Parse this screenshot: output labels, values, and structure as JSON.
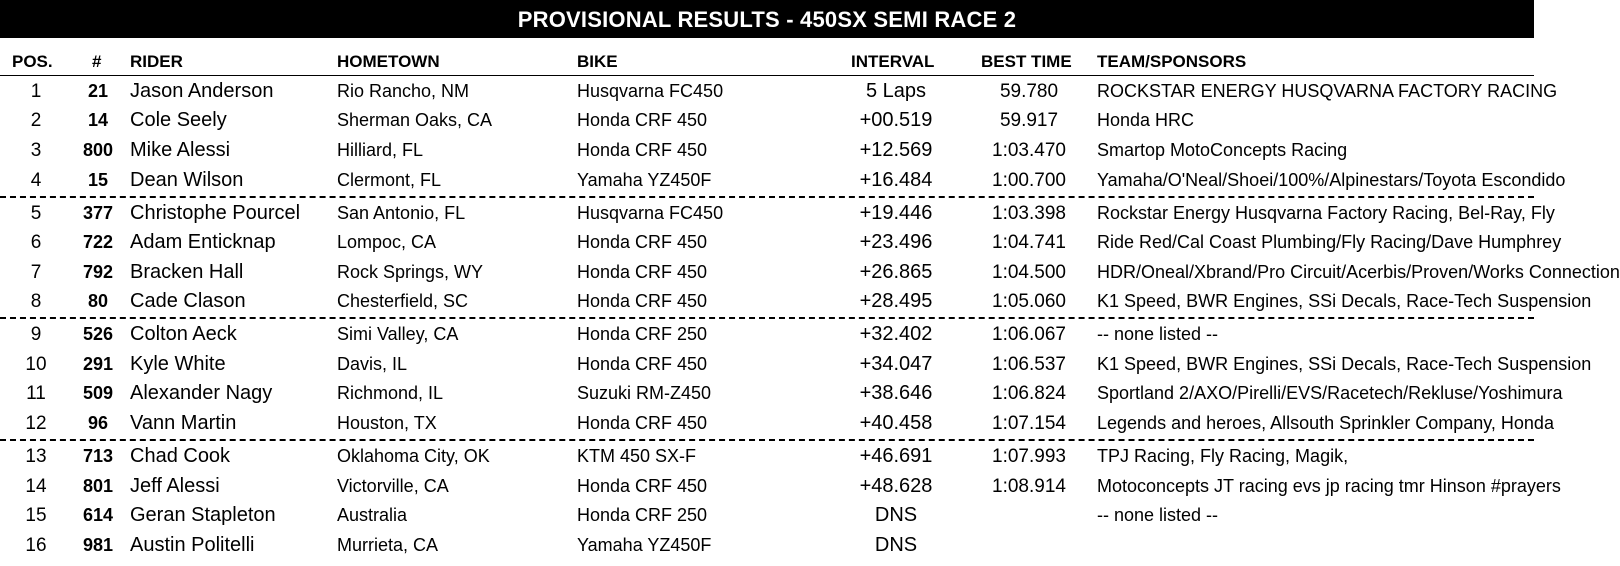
{
  "title": "PROVISIONAL RESULTS - 450SX SEMI RACE 2",
  "headers": {
    "pos": "POS.",
    "num": "#",
    "rider": "RIDER",
    "hometown": "HOMETOWN",
    "bike": "BIKE",
    "interval": "INTERVAL",
    "best_time": "BEST TIME",
    "team": "TEAM/SPONSORS"
  },
  "rows": [
    {
      "pos": "1",
      "num": "21",
      "rider": "Jason Anderson",
      "hometown": "Rio Rancho, NM",
      "bike": "Husqvarna FC450",
      "interval": "5 Laps",
      "best": "59.780",
      "team": "ROCKSTAR ENERGY HUSQVARNA FACTORY RACING"
    },
    {
      "pos": "2",
      "num": "14",
      "rider": "Cole Seely",
      "hometown": "Sherman Oaks, CA",
      "bike": "Honda CRF 450",
      "interval": "+00.519",
      "best": "59.917",
      "team": "Honda HRC"
    },
    {
      "pos": "3",
      "num": "800",
      "rider": "Mike Alessi",
      "hometown": "Hilliard, FL",
      "bike": "Honda CRF 450",
      "interval": "+12.569",
      "best": "1:03.470",
      "team": "Smartop MotoConcepts Racing"
    },
    {
      "pos": "4",
      "num": "15",
      "rider": "Dean Wilson",
      "hometown": "Clermont, FL",
      "bike": "Yamaha YZ450F",
      "interval": "+16.484",
      "best": "1:00.700",
      "team": "Yamaha/O'Neal/Shoei/100%/Alpinestars/Toyota Escondido"
    },
    {
      "pos": "5",
      "num": "377",
      "rider": "Christophe Pourcel",
      "hometown": "San Antonio, FL",
      "bike": "Husqvarna FC450",
      "interval": "+19.446",
      "best": "1:03.398",
      "team": "Rockstar Energy Husqvarna Factory Racing, Bel-Ray, Fly"
    },
    {
      "pos": "6",
      "num": "722",
      "rider": "Adam Enticknap",
      "hometown": "Lompoc, CA",
      "bike": "Honda CRF 450",
      "interval": "+23.496",
      "best": "1:04.741",
      "team": "Ride Red/Cal Coast Plumbing/Fly Racing/Dave Humphrey"
    },
    {
      "pos": "7",
      "num": "792",
      "rider": "Bracken Hall",
      "hometown": "Rock Springs, WY",
      "bike": "Honda CRF 450",
      "interval": "+26.865",
      "best": "1:04.500",
      "team": "HDR/Oneal/Xbrand/Pro Circuit/Acerbis/Proven/Works Connection"
    },
    {
      "pos": "8",
      "num": "80",
      "rider": "Cade Clason",
      "hometown": "Chesterfield, SC",
      "bike": "Honda CRF 450",
      "interval": "+28.495",
      "best": "1:05.060",
      "team": "K1 Speed, BWR Engines, SSi Decals, Race-Tech Suspension"
    },
    {
      "pos": "9",
      "num": "526",
      "rider": "Colton Aeck",
      "hometown": "Simi Valley, CA",
      "bike": "Honda CRF 250",
      "interval": "+32.402",
      "best": "1:06.067",
      "team": "-- none listed --"
    },
    {
      "pos": "10",
      "num": "291",
      "rider": "Kyle White",
      "hometown": "Davis, IL",
      "bike": "Honda CRF 450",
      "interval": "+34.047",
      "best": "1:06.537",
      "team": "K1 Speed, BWR Engines, SSi Decals, Race-Tech Suspension"
    },
    {
      "pos": "11",
      "num": "509",
      "rider": "Alexander Nagy",
      "hometown": "Richmond, IL",
      "bike": "Suzuki RM-Z450",
      "interval": "+38.646",
      "best": "1:06.824",
      "team": "Sportland 2/AXO/Pirelli/EVS/Racetech/Rekluse/Yoshimura"
    },
    {
      "pos": "12",
      "num": "96",
      "rider": "Vann Martin",
      "hometown": "Houston, TX",
      "bike": "Honda CRF 450",
      "interval": "+40.458",
      "best": "1:07.154",
      "team": "Legends and heroes, Allsouth Sprinkler Company, Honda"
    },
    {
      "pos": "13",
      "num": "713",
      "rider": "Chad Cook",
      "hometown": "Oklahoma City, OK",
      "bike": "KTM 450 SX-F",
      "interval": "+46.691",
      "best": "1:07.993",
      "team": "TPJ Racing, Fly Racing, Magik,"
    },
    {
      "pos": "14",
      "num": "801",
      "rider": "Jeff Alessi",
      "hometown": "Victorville, CA",
      "bike": "Honda CRF 450",
      "interval": "+48.628",
      "best": "1:08.914",
      "team": "Motoconcepts JT racing evs jp racing tmr Hinson #prayers"
    },
    {
      "pos": "15",
      "num": "614",
      "rider": "Geran Stapleton",
      "hometown": "Australia",
      "bike": "Honda CRF 250",
      "interval": "DNS",
      "best": "",
      "team": "-- none listed --"
    },
    {
      "pos": "16",
      "num": "981",
      "rider": "Austin Politelli",
      "hometown": "Murrieta, CA",
      "bike": "Yamaha YZ450F",
      "interval": "DNS",
      "best": "",
      "team": ""
    }
  ]
}
